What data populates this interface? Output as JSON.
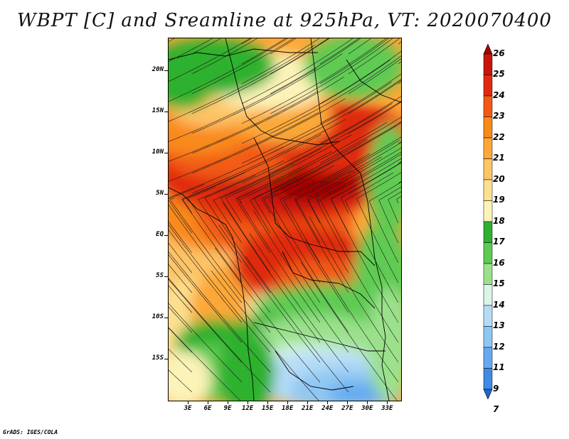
{
  "title": "WBPT [C] and Sreamline at 925hPa, VT: 2020070400",
  "footer": "GrADS: IGES/COLA",
  "colors": {
    "frame": "#000000",
    "streamline": "#1a1a1a"
  },
  "map": {
    "lon_range": [
      0,
      35
    ],
    "lat_range": [
      -20,
      24
    ],
    "lat_ticks": [
      {
        "label": "20N",
        "value": 20
      },
      {
        "label": "15N",
        "value": 15
      },
      {
        "label": "10N",
        "value": 10
      },
      {
        "label": "5N",
        "value": 5
      },
      {
        "label": "EQ",
        "value": 0
      },
      {
        "label": "5S",
        "value": -5
      },
      {
        "label": "10S",
        "value": -10
      },
      {
        "label": "15S",
        "value": -15
      }
    ],
    "lon_ticks": [
      {
        "label": "3E",
        "value": 3
      },
      {
        "label": "6E",
        "value": 6
      },
      {
        "label": "9E",
        "value": 9
      },
      {
        "label": "12E",
        "value": 12
      },
      {
        "label": "15E",
        "value": 15
      },
      {
        "label": "18E",
        "value": 18
      },
      {
        "label": "21E",
        "value": 21
      },
      {
        "label": "24E",
        "value": 24
      },
      {
        "label": "27E",
        "value": 27
      },
      {
        "label": "30E",
        "value": 30
      },
      {
        "label": "33E",
        "value": 33
      }
    ]
  },
  "colorbar": {
    "levels": [
      {
        "label": "26",
        "color": "#a50000"
      },
      {
        "label": "25",
        "color": "#c8150c"
      },
      {
        "label": "24",
        "color": "#e02a10"
      },
      {
        "label": "23",
        "color": "#f25a13"
      },
      {
        "label": "22",
        "color": "#f98a1a"
      },
      {
        "label": "21",
        "color": "#fca838"
      },
      {
        "label": "20",
        "color": "#fdc568"
      },
      {
        "label": "19",
        "color": "#fde08f"
      },
      {
        "label": "18",
        "color": "#fcf3b8"
      },
      {
        "label": "17",
        "color": "#2fb12f"
      },
      {
        "label": "16",
        "color": "#5ecb52"
      },
      {
        "label": "15",
        "color": "#9be18c"
      },
      {
        "label": "14",
        "color": "#d8f5e6"
      },
      {
        "label": "13",
        "color": "#b5dcf7"
      },
      {
        "label": "12",
        "color": "#8fc7f3"
      },
      {
        "label": "11",
        "color": "#65aaef"
      },
      {
        "label": "9",
        "color": "#3f8ae5"
      },
      {
        "label": "7",
        "color": "#1f64d2"
      }
    ]
  }
}
